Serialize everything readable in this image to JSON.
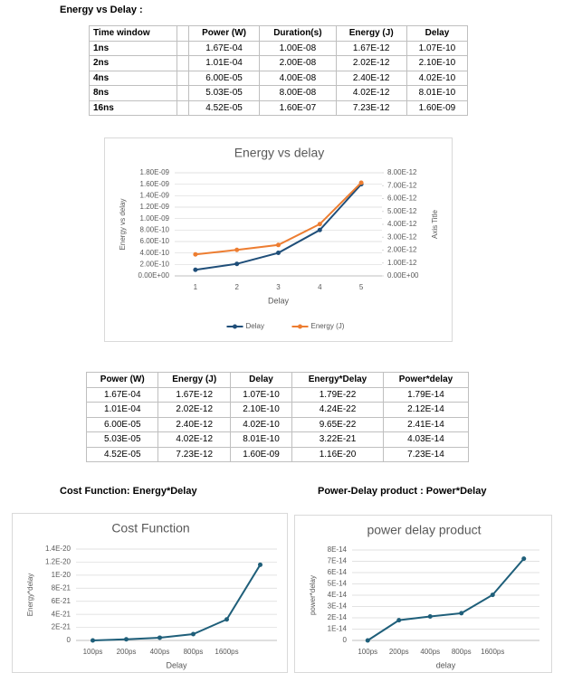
{
  "heading1": "Energy vs Delay :",
  "table1": {
    "header": [
      "Time window",
      "Power (W)",
      "Duration(s)",
      "Energy (J)",
      "Delay"
    ],
    "rows": [
      [
        "1ns",
        "1.67E-04",
        "1.00E-08",
        "1.67E-12",
        "1.07E-10"
      ],
      [
        "2ns",
        "1.01E-04",
        "2.00E-08",
        "2.02E-12",
        "2.10E-10"
      ],
      [
        "4ns",
        "6.00E-05",
        "4.00E-08",
        "2.40E-12",
        "4.02E-10"
      ],
      [
        "8ns",
        "5.03E-05",
        "8.00E-08",
        "4.02E-12",
        "8.01E-10"
      ],
      [
        "16ns",
        "4.52E-05",
        "1.60E-07",
        "7.23E-12",
        "1.60E-09"
      ]
    ]
  },
  "chart1": {
    "type": "line",
    "title": "Energy vs delay",
    "xlabel": "Delay",
    "ylabel": "Energy vs delay",
    "y2label": "Axis Title",
    "x": [
      1,
      2,
      3,
      4,
      5
    ],
    "xlim": [
      0.5,
      5.5
    ],
    "xticks": [
      1,
      2,
      3,
      4,
      5
    ],
    "ylim": [
      0,
      1.8e-09
    ],
    "yticks": [
      {
        "value": 0,
        "label": "0.00E+00"
      },
      {
        "value": 2e-10,
        "label": "2.00E-10"
      },
      {
        "value": 4e-10,
        "label": "4.00E-10"
      },
      {
        "value": 6e-10,
        "label": "6.00E-10"
      },
      {
        "value": 8e-10,
        "label": "8.00E-10"
      },
      {
        "value": 1e-09,
        "label": "1.00E-09"
      },
      {
        "value": 1.2e-09,
        "label": "1.20E-09"
      },
      {
        "value": 1.4e-09,
        "label": "1.40E-09"
      },
      {
        "value": 1.6e-09,
        "label": "1.60E-09"
      },
      {
        "value": 1.8e-09,
        "label": "1.80E-09"
      }
    ],
    "y2lim": [
      0,
      8e-12
    ],
    "y2ticks": [
      {
        "value": 0,
        "label": "0.00E+00"
      },
      {
        "value": 1e-12,
        "label": "1.00E-12"
      },
      {
        "value": 2e-12,
        "label": "2.00E-12"
      },
      {
        "value": 3e-12,
        "label": "3.00E-12"
      },
      {
        "value": 4e-12,
        "label": "4.00E-12"
      },
      {
        "value": 5e-12,
        "label": "5.00E-12"
      },
      {
        "value": 6e-12,
        "label": "6.00E-12"
      },
      {
        "value": 7e-12,
        "label": "7.00E-12"
      },
      {
        "value": 8e-12,
        "label": "8.00E-12"
      }
    ],
    "grid": true,
    "legend": "bottom",
    "series": [
      {
        "name": "Delay",
        "color": "#1f4e79",
        "values": [
          1.07e-10,
          2.1e-10,
          4.02e-10,
          8.01e-10,
          1.6e-09
        ]
      },
      {
        "name": "Energy (J)",
        "color": "#ed7d31",
        "axis": "y2",
        "values": [
          1.67e-12,
          2.02e-12,
          2.4e-12,
          4.02e-12,
          7.23e-12
        ]
      }
    ]
  },
  "table2": {
    "header": [
      "Power (W)",
      "Energy (J)",
      "Delay",
      "Energy*Delay",
      "Power*delay"
    ],
    "rows": [
      [
        "1.67E-04",
        "1.67E-12",
        "1.07E-10",
        "1.79E-22",
        "1.79E-14"
      ],
      [
        "1.01E-04",
        "2.02E-12",
        "2.10E-10",
        "4.24E-22",
        "2.12E-14"
      ],
      [
        "6.00E-05",
        "2.40E-12",
        "4.02E-10",
        "9.65E-22",
        "2.41E-14"
      ],
      [
        "5.03E-05",
        "4.02E-12",
        "8.01E-10",
        "3.22E-21",
        "4.03E-14"
      ],
      [
        "4.52E-05",
        "7.23E-12",
        "1.60E-09",
        "1.16E-20",
        "7.23E-14"
      ]
    ]
  },
  "heading2": "Cost Function: Energy*Delay",
  "heading3": "Power-Delay product : Power*Delay",
  "chart2": {
    "type": "line",
    "title": "Cost Function",
    "xlabel": "Delay",
    "ylabel": "Energy*delay",
    "categories": [
      "100ps",
      "200ps",
      "400ps",
      "800ps",
      "1600ps",
      null
    ],
    "ylim": [
      0,
      1.4e-20
    ],
    "yticks": [
      0,
      {
        "value": 2e-21,
        "label": "2E-21"
      },
      {
        "value": 4e-21,
        "label": "4E-21"
      },
      {
        "value": 6e-21,
        "label": "6E-21"
      },
      {
        "value": 8e-21,
        "label": "8E-21"
      },
      {
        "value": 1e-20,
        "label": "1E-20"
      },
      {
        "value": 1.2e-20,
        "label": "1.2E-20"
      },
      {
        "value": 1.4e-20,
        "label": "1.4E-20"
      }
    ],
    "grid": true,
    "series": [
      {
        "name": "Energy*Delay",
        "color": "#1f5f7a",
        "values": [
          0,
          1.79e-22,
          4.24e-22,
          9.65e-22,
          3.22e-21,
          1.16e-20
        ]
      }
    ]
  },
  "chart3": {
    "type": "line",
    "title": "power delay product",
    "xlabel": "delay",
    "ylabel": "power*delay",
    "categories": [
      "100ps",
      "200ps",
      "400ps",
      "800ps",
      "1600ps",
      null
    ],
    "ylim": [
      0,
      8e-14
    ],
    "yticks": [
      0,
      {
        "value": 1e-14,
        "label": "1E-14"
      },
      {
        "value": 2e-14,
        "label": "2E-14"
      },
      {
        "value": 3e-14,
        "label": "3E-14"
      },
      {
        "value": 4e-14,
        "label": "4E-14"
      },
      {
        "value": 5e-14,
        "label": "5E-14"
      },
      {
        "value": 6e-14,
        "label": "6E-14"
      },
      {
        "value": 7e-14,
        "label": "7E-14"
      },
      {
        "value": 8e-14,
        "label": "8E-14"
      }
    ],
    "grid": true,
    "series": [
      {
        "name": "Power*delay",
        "color": "#1f5f7a",
        "values": [
          0,
          1.79e-14,
          2.12e-14,
          2.41e-14,
          4.03e-14,
          7.23e-14
        ]
      }
    ]
  }
}
